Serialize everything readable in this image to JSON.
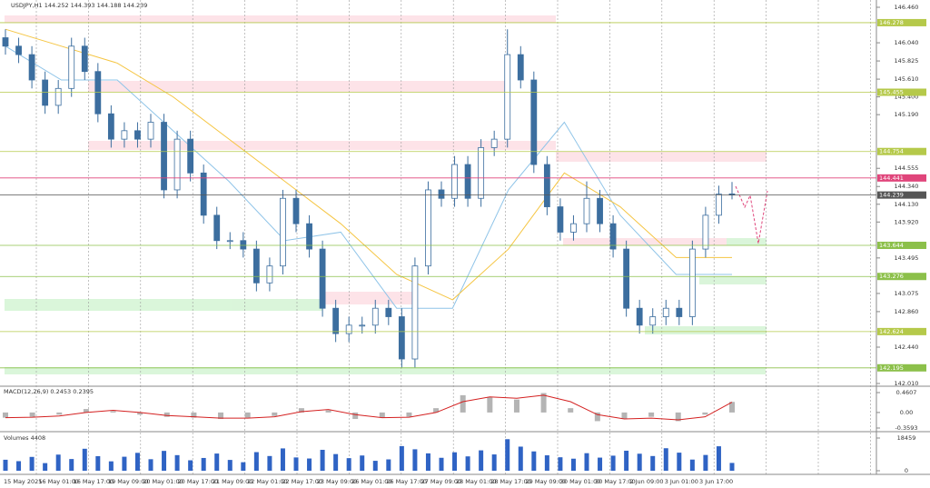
{
  "chart_data": [
    {
      "type": "candlestick",
      "title": "USDJPY,H1 144.252 144.393 144.188 144.239",
      "color": "#3c6e9f",
      "open": [
        146.1,
        146.0,
        145.9,
        145.6,
        145.3,
        145.5,
        146.0,
        145.7,
        145.2,
        144.9,
        145.0,
        144.9,
        145.1,
        144.3,
        144.9,
        144.5,
        144.0,
        143.7,
        143.7,
        143.6,
        143.2,
        143.4,
        144.2,
        143.9,
        143.6,
        142.9,
        142.6,
        142.7,
        142.7,
        142.9,
        142.8,
        142.3,
        143.4,
        144.3,
        144.2,
        144.6,
        144.2,
        144.8,
        144.9,
        145.9,
        145.6,
        144.6,
        144.1,
        143.8,
        143.9,
        144.2,
        143.9,
        143.6,
        142.9,
        142.7,
        142.8,
        142.9,
        142.8,
        143.6,
        144.0,
        144.252
      ],
      "high": [
        146.2,
        146.1,
        146.0,
        145.7,
        145.6,
        146.1,
        146.1,
        145.8,
        145.3,
        145.1,
        145.1,
        145.2,
        145.2,
        145.0,
        145.0,
        144.6,
        144.1,
        143.8,
        143.8,
        143.7,
        143.5,
        144.3,
        144.3,
        144.0,
        143.7,
        143.0,
        142.8,
        142.8,
        143.0,
        143.0,
        142.9,
        143.5,
        144.4,
        144.4,
        144.7,
        144.7,
        144.9,
        145.0,
        146.2,
        146.0,
        145.7,
        144.7,
        144.2,
        144.0,
        144.4,
        144.3,
        144.0,
        143.7,
        143.0,
        142.9,
        143.0,
        143.0,
        143.7,
        144.1,
        144.35,
        144.393
      ],
      "low": [
        145.9,
        145.8,
        145.5,
        145.2,
        145.2,
        145.4,
        145.6,
        145.1,
        144.8,
        144.8,
        144.8,
        144.8,
        144.2,
        144.2,
        144.4,
        143.9,
        143.6,
        143.6,
        143.5,
        143.1,
        143.1,
        143.3,
        143.8,
        143.5,
        142.8,
        142.5,
        142.5,
        142.6,
        142.6,
        142.7,
        142.2,
        142.2,
        143.3,
        144.1,
        144.1,
        144.1,
        144.1,
        144.7,
        144.8,
        145.5,
        144.5,
        144.0,
        143.7,
        143.7,
        143.8,
        143.8,
        143.5,
        142.8,
        142.6,
        142.6,
        142.7,
        142.7,
        142.7,
        143.5,
        143.9,
        144.188
      ],
      "close": [
        146.0,
        145.9,
        145.6,
        145.3,
        145.5,
        146.0,
        145.7,
        145.2,
        144.9,
        145.0,
        144.9,
        145.1,
        144.3,
        144.9,
        144.5,
        144.0,
        143.7,
        143.7,
        143.6,
        143.2,
        143.4,
        144.2,
        143.9,
        143.6,
        142.9,
        142.6,
        142.7,
        142.7,
        142.9,
        142.8,
        142.3,
        143.4,
        144.3,
        144.2,
        144.6,
        144.2,
        144.8,
        144.9,
        145.9,
        145.6,
        144.6,
        144.1,
        143.8,
        143.9,
        144.2,
        143.9,
        143.6,
        142.9,
        142.7,
        142.8,
        142.9,
        142.8,
        143.6,
        144.0,
        144.25,
        144.239
      ],
      "moving_averages": [
        {
          "color": "#8fc4e8",
          "values": [
            146.0,
            145.6,
            145.6,
            145.0,
            144.4,
            143.7,
            143.8,
            142.9,
            142.9,
            144.3,
            145.1,
            144.0,
            143.3,
            143.3
          ]
        },
        {
          "color": "#f5c542",
          "values": [
            146.2,
            146.0,
            145.8,
            145.4,
            144.9,
            144.4,
            143.9,
            143.3,
            143.0,
            143.6,
            144.5,
            144.1,
            143.5,
            143.5
          ]
        }
      ],
      "levels": [
        146.278,
        145.455,
        144.754,
        144.441,
        144.239,
        143.644,
        143.276,
        142.624,
        142.195
      ],
      "level_colors": [
        "#b5c94a",
        "#b5c94a",
        "#b5c94a",
        "#e0457b",
        "#555555",
        "#8cc04a",
        "#8cc04a",
        "#b5c94a",
        "#8cc04a"
      ],
      "ylim": [
        142.01,
        146.46
      ],
      "yticks": [
        {
          "value": 146.46,
          "label": "146.460"
        },
        {
          "value": 146.04,
          "label": "146.040"
        },
        145.825,
        {
          "value": 145.61,
          "label": "145.610"
        },
        {
          "value": 145.4,
          "label": "145.400"
        },
        {
          "value": 145.19,
          "label": "145.190"
        },
        144.555,
        {
          "value": 144.34,
          "label": "144.340"
        },
        {
          "value": 144.13,
          "label": "144.130"
        },
        {
          "value": 143.92,
          "label": "143.920"
        },
        143.495,
        143.075,
        {
          "value": 142.86,
          "label": "142.860"
        },
        {
          "value": 142.44,
          "label": "142.440"
        },
        {
          "value": 142.01,
          "label": "142.010"
        }
      ],
      "x_labels": [
        "15 May 2025",
        "16 May 01:00",
        "16 May 17:00",
        "19 May 09:00",
        "20 May 01:00",
        "20 May 17:00",
        "21 May 09:00",
        "22 May 01:00",
        "22 May 17:00",
        "23 May 09:00",
        "26 May 01:00",
        "26 May 17:00",
        "27 May 09:00",
        "28 May 01:00",
        "28 May 17:00",
        "29 May 09:00",
        "30 May 01:00",
        "30 May 17:00",
        "2 Jun 09:00",
        "3 Jun 01:00",
        "3 Jun 17:00"
      ]
    },
    {
      "type": "macd",
      "title": "MACD(12,26,9) 0.2453 0.2395",
      "color": "#b4b4b4",
      "signal_color": "#d42020",
      "values": [
        -0.12,
        -0.1,
        -0.05,
        0.08,
        0.03,
        -0.05,
        -0.1,
        -0.12,
        -0.15,
        -0.12,
        -0.08,
        0.1,
        0.05,
        -0.15,
        -0.12,
        -0.1,
        0.1,
        0.4,
        0.35,
        0.3,
        0.45,
        0.1,
        -0.2,
        -0.15,
        -0.1,
        -0.2,
        -0.05,
        0.2453
      ],
      "signal": [
        -0.12,
        -0.11,
        -0.08,
        0.0,
        0.05,
        0.0,
        -0.07,
        -0.1,
        -0.13,
        -0.13,
        -0.1,
        0.02,
        0.07,
        -0.05,
        -0.12,
        -0.11,
        0.0,
        0.25,
        0.36,
        0.33,
        0.4,
        0.25,
        -0.05,
        -0.15,
        -0.13,
        -0.17,
        -0.1,
        0.2395
      ],
      "ylim": [
        -0.3593,
        0.4607
      ],
      "yticks": [
        0.4607,
        {
          "value": 0,
          "label": "0.00"
        },
        -0.3593
      ]
    },
    {
      "type": "volume",
      "title": "Volumes 4408",
      "color": "#2f63c4",
      "values": [
        6200,
        5400,
        7800,
        4300,
        9100,
        6600,
        12400,
        8200,
        5300,
        7900,
        10100,
        6500,
        11200,
        8800,
        5900,
        7200,
        9700,
        6100,
        4800,
        10500,
        8300,
        12600,
        7500,
        6900,
        11800,
        9400,
        7100,
        8600,
        5600,
        6400,
        13900,
        12100,
        9800,
        7300,
        10400,
        8100,
        11500,
        9200,
        17800,
        13600,
        10900,
        8700,
        7600,
        6800,
        9900,
        7400,
        8500,
        11300,
        9600,
        8300,
        12700,
        10200,
        6300,
        8900,
        13800,
        4408
      ],
      "ylim": [
        0,
        18459
      ],
      "yticks": [
        18459,
        0
      ]
    }
  ]
}
